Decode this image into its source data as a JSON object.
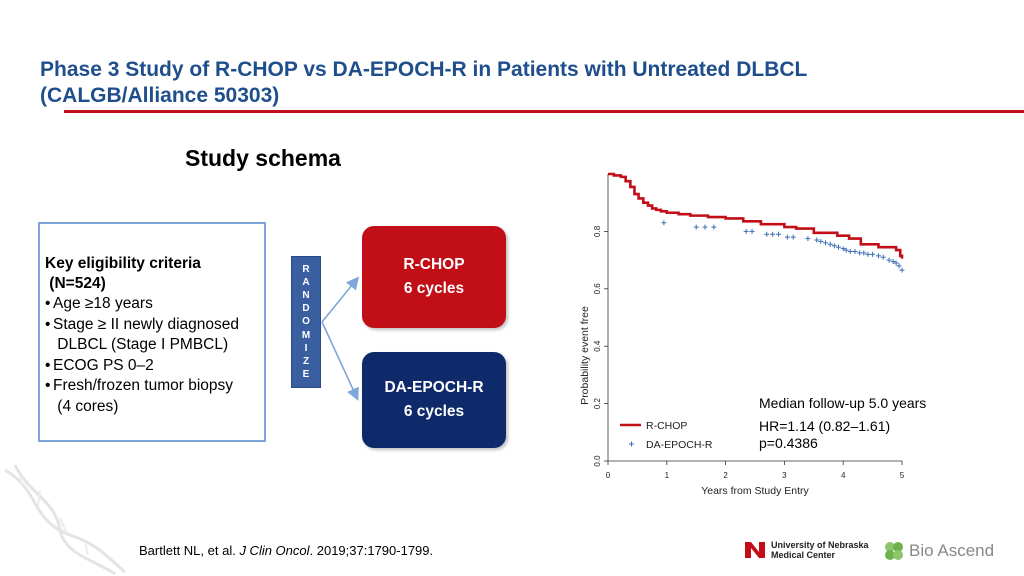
{
  "slide": {
    "title_line1": "Phase 3 Study of R-CHOP vs DA-EPOCH-R in Patients with Untreated DLBCL",
    "title_line2": "(CALGB/Alliance 50303)",
    "subtitle": "Study schema",
    "citation_prefix": "Bartlett NL, et al. ",
    "citation_journal": "J Clin Oncol",
    "citation_suffix": ". 2019;37:1790-1799."
  },
  "criteria": {
    "heading1": "Key eligibility criteria",
    "heading2": " (N=524)",
    "items": [
      "Age ≥18 years",
      "Stage ≥ II newly diagnosed\n DLBCL (Stage I PMBCL)",
      "ECOG PS 0–2",
      "Fresh/frozen tumor biopsy\n (4 cores)"
    ]
  },
  "randomize_letters": [
    "R",
    "A",
    "N",
    "D",
    "O",
    "M",
    "I",
    "Z",
    "E"
  ],
  "arms": {
    "rchop_line1": "R-CHOP",
    "rchop_line2": "6 cycles",
    "epoch_line1": "DA-EPOCH-R",
    "epoch_line2": "6 cycles"
  },
  "annotations": {
    "followup": "Median follow-up 5.0 years",
    "hr": "HR=1.14 (0.82–1.61)",
    "p": "p=0.4386"
  },
  "logos": {
    "unmc_line1": "University of Nebraska",
    "unmc_line2": "Medical Center",
    "bio": "Bio Ascend"
  },
  "colors": {
    "title": "#1f4e8c",
    "accent_red": "#c0101e",
    "rchop": "#c10e17",
    "epoch": "#0f2a6b",
    "plus": "#3b6fb5"
  },
  "chart_data": {
    "type": "line",
    "title": "",
    "xlabel": "Years from Study Entry",
    "ylabel": "Probability event free",
    "xlim": [
      0,
      5
    ],
    "ylim": [
      0,
      1
    ],
    "xticks": [
      "0",
      "1",
      "2",
      "3",
      "4",
      "5"
    ],
    "yticks": [
      "0.0",
      "0.2",
      "0.4",
      "0.6",
      "0.8"
    ],
    "legend": "bottom-left",
    "series": [
      {
        "name": "R-CHOP",
        "style": "step-line",
        "x": [
          0,
          0.1,
          0.22,
          0.3,
          0.38,
          0.45,
          0.52,
          0.6,
          0.68,
          0.75,
          0.82,
          0.9,
          1.0,
          1.2,
          1.4,
          1.7,
          2.0,
          2.3,
          2.6,
          3.0,
          3.2,
          3.5,
          3.9,
          4.1,
          4.3,
          4.6,
          4.9,
          4.97,
          5.0
        ],
        "y": [
          1.0,
          0.995,
          0.99,
          0.975,
          0.955,
          0.93,
          0.915,
          0.9,
          0.89,
          0.88,
          0.875,
          0.87,
          0.865,
          0.86,
          0.855,
          0.85,
          0.845,
          0.835,
          0.825,
          0.815,
          0.81,
          0.795,
          0.785,
          0.775,
          0.755,
          0.745,
          0.735,
          0.715,
          0.705
        ]
      },
      {
        "name": "DA-EPOCH-R",
        "style": "censor-plus",
        "x": [
          0.95,
          1.5,
          1.65,
          1.8,
          2.35,
          2.45,
          2.7,
          2.8,
          2.9,
          3.05,
          3.15,
          3.4,
          3.55,
          3.62,
          3.7,
          3.78,
          3.85,
          3.92,
          4.0,
          4.05,
          4.12,
          4.2,
          4.28,
          4.35,
          4.42,
          4.5,
          4.6,
          4.68,
          4.78,
          4.85,
          4.9,
          4.95,
          5.0
        ],
        "y": [
          0.83,
          0.815,
          0.815,
          0.815,
          0.8,
          0.8,
          0.79,
          0.79,
          0.79,
          0.78,
          0.78,
          0.775,
          0.77,
          0.765,
          0.76,
          0.755,
          0.75,
          0.745,
          0.74,
          0.735,
          0.73,
          0.73,
          0.725,
          0.725,
          0.72,
          0.72,
          0.715,
          0.71,
          0.7,
          0.695,
          0.69,
          0.68,
          0.665
        ]
      }
    ]
  }
}
